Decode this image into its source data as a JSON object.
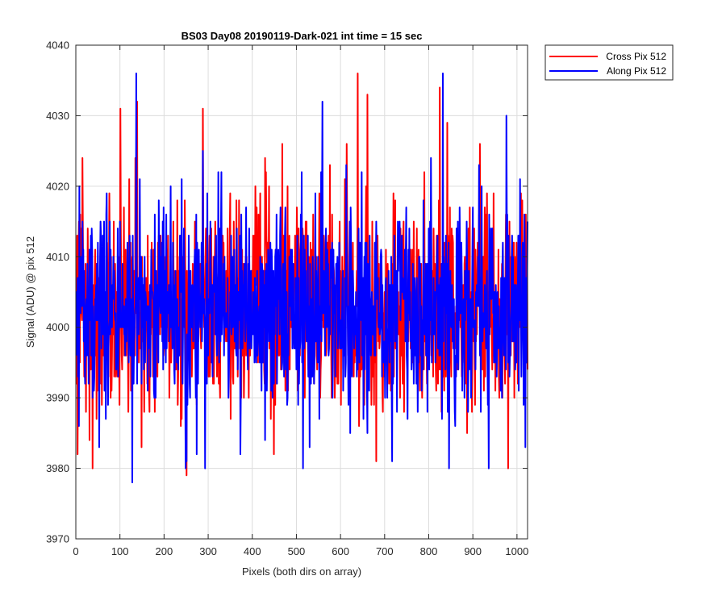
{
  "chart_data": {
    "type": "line",
    "title": "BS03 Day08 20190119-Dark-021 int time = 15 sec",
    "xlabel": "Pixels (both dirs on array)",
    "ylabel": "Signal (ADU) @ pix 512",
    "xlim": [
      0,
      1024
    ],
    "ylim": [
      3970,
      4040
    ],
    "xticks": [
      0,
      100,
      200,
      300,
      400,
      500,
      600,
      700,
      800,
      900,
      1000
    ],
    "yticks": [
      3970,
      3980,
      3990,
      4000,
      4010,
      4020,
      4030,
      4040
    ],
    "grid": true,
    "legend_position": "outside top-right",
    "series": [
      {
        "name": "Cross Pix 512",
        "color": "#ff0000",
        "points": 1024,
        "mean": 4003,
        "noise_std": 7.5,
        "extremes": [
          {
            "x": 3,
            "y": 3982
          },
          {
            "x": 14,
            "y": 4024
          },
          {
            "x": 138,
            "y": 4032
          },
          {
            "x": 250,
            "y": 3979
          },
          {
            "x": 287,
            "y": 4031
          },
          {
            "x": 638,
            "y": 4036
          },
          {
            "x": 660,
            "y": 4033
          },
          {
            "x": 824,
            "y": 4034
          },
          {
            "x": 915,
            "y": 4026
          },
          {
            "x": 979,
            "y": 3980
          }
        ]
      },
      {
        "name": "Along Pix 512",
        "color": "#0000ff",
        "points": 1024,
        "mean": 4003,
        "noise_std": 7.5,
        "extremes": [
          {
            "x": 127,
            "y": 3978
          },
          {
            "x": 136,
            "y": 4036
          },
          {
            "x": 292,
            "y": 3980
          },
          {
            "x": 558,
            "y": 4032
          },
          {
            "x": 831,
            "y": 4036
          },
          {
            "x": 975,
            "y": 4030
          },
          {
            "x": 935,
            "y": 3980
          }
        ]
      }
    ]
  }
}
